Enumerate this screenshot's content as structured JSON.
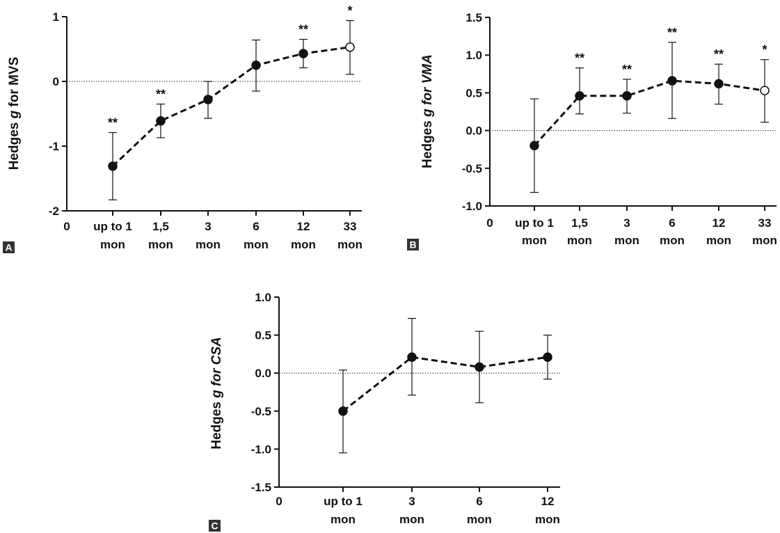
{
  "chart_data": [
    {
      "panel": "A",
      "type": "line",
      "ylabel": {
        "prefix": "Hedges ",
        "italic": "g",
        "suffix": " for MVS"
      },
      "ylim": [
        -2,
        1
      ],
      "yticks": [
        {
          "value": 1,
          "label": "1"
        },
        {
          "value": 0,
          "label": "0"
        },
        {
          "value": -1,
          "label": "-1"
        },
        {
          "value": -2,
          "label": "-2"
        }
      ],
      "origin_label": "0",
      "categories": [
        [
          "up to 1",
          "mon"
        ],
        [
          "1,5",
          "mon"
        ],
        [
          "3",
          "mon"
        ],
        [
          "6",
          "mon"
        ],
        [
          "12",
          "mon"
        ],
        [
          "33",
          "mon"
        ]
      ],
      "points": [
        {
          "y": -1.31,
          "lo": -1.83,
          "hi": -0.79,
          "sig": "**",
          "open": false
        },
        {
          "y": -0.61,
          "lo": -0.87,
          "hi": -0.35,
          "sig": "**",
          "open": false
        },
        {
          "y": -0.28,
          "lo": -0.57,
          "hi": 0.0,
          "sig": "",
          "open": false
        },
        {
          "y": 0.25,
          "lo": -0.15,
          "hi": 0.64,
          "sig": "",
          "open": false
        },
        {
          "y": 0.43,
          "lo": 0.21,
          "hi": 0.65,
          "sig": "**",
          "open": false
        },
        {
          "y": 0.53,
          "lo": 0.11,
          "hi": 0.94,
          "sig": "*",
          "open": true
        }
      ]
    },
    {
      "panel": "B",
      "type": "line",
      "ylabel": {
        "prefix": "Hedges ",
        "italic": "g for VMA",
        "suffix": ""
      },
      "ylim": [
        -1.0,
        1.5
      ],
      "yticks": [
        {
          "value": 1.5,
          "label": "1.5"
        },
        {
          "value": 1.0,
          "label": "1.0"
        },
        {
          "value": 0.5,
          "label": "0.5"
        },
        {
          "value": 0.0,
          "label": "0.0"
        },
        {
          "value": -0.5,
          "label": "-0.5"
        },
        {
          "value": -1.0,
          "label": "-1.0"
        }
      ],
      "origin_label": "0",
      "categories": [
        [
          "up to 1",
          "mon"
        ],
        [
          "1,5",
          "mon"
        ],
        [
          "3",
          "mon"
        ],
        [
          "6",
          "mon"
        ],
        [
          "12",
          "mon"
        ],
        [
          "33",
          "mon"
        ]
      ],
      "points": [
        {
          "y": -0.2,
          "lo": -0.82,
          "hi": 0.42,
          "sig": "",
          "open": false
        },
        {
          "y": 0.46,
          "lo": 0.22,
          "hi": 0.83,
          "sig": "**",
          "open": false
        },
        {
          "y": 0.46,
          "lo": 0.23,
          "hi": 0.68,
          "sig": "**",
          "open": false
        },
        {
          "y": 0.66,
          "lo": 0.16,
          "hi": 1.17,
          "sig": "**",
          "open": false
        },
        {
          "y": 0.62,
          "lo": 0.35,
          "hi": 0.88,
          "sig": "**",
          "open": false
        },
        {
          "y": 0.53,
          "lo": 0.11,
          "hi": 0.94,
          "sig": "*",
          "open": true
        }
      ]
    },
    {
      "panel": "C",
      "type": "line",
      "ylabel": {
        "prefix": "Hedges ",
        "italic": "g for CSA",
        "suffix": ""
      },
      "ylim": [
        -1.5,
        1.0
      ],
      "yticks": [
        {
          "value": 1.0,
          "label": "1.0"
        },
        {
          "value": 0.5,
          "label": "0.5"
        },
        {
          "value": 0.0,
          "label": "0.0"
        },
        {
          "value": -0.5,
          "label": "-0.5"
        },
        {
          "value": -1.0,
          "label": "-1.0"
        },
        {
          "value": -1.5,
          "label": "-1.5"
        }
      ],
      "origin_label": "0",
      "categories": [
        [
          "up to 1",
          "mon"
        ],
        [
          "3",
          "mon"
        ],
        [
          "6",
          "mon"
        ],
        [
          "12",
          "mon"
        ]
      ],
      "points": [
        {
          "y": -0.5,
          "lo": -1.05,
          "hi": 0.04,
          "sig": "",
          "open": false
        },
        {
          "y": 0.21,
          "lo": -0.29,
          "hi": 0.72,
          "sig": "",
          "open": false
        },
        {
          "y": 0.08,
          "lo": -0.39,
          "hi": 0.55,
          "sig": "",
          "open": false
        },
        {
          "y": 0.21,
          "lo": -0.08,
          "hi": 0.5,
          "sig": "",
          "open": false
        }
      ]
    }
  ]
}
